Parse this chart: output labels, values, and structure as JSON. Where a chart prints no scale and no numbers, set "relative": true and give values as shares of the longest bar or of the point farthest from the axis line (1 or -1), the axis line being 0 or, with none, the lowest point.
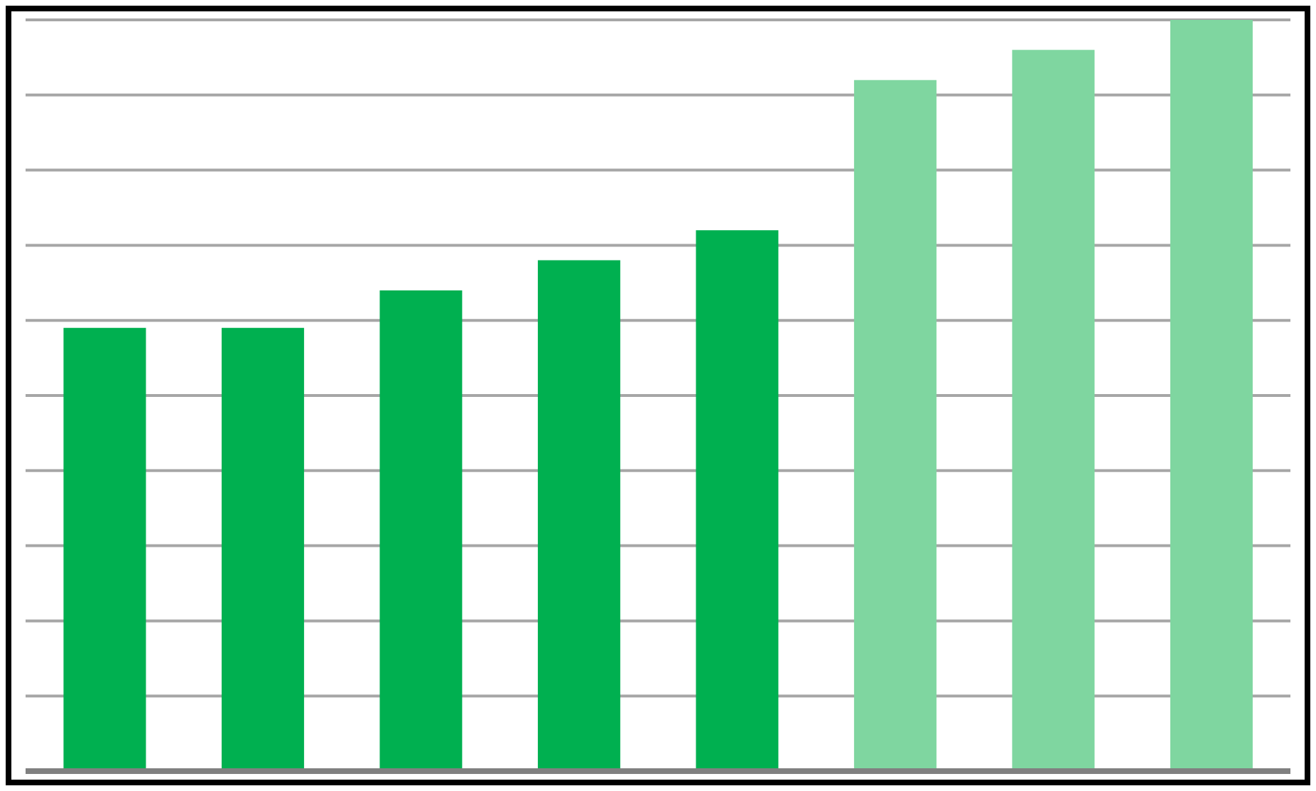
{
  "chart_data": {
    "type": "bar",
    "relative": true,
    "categories": [
      null,
      null,
      null,
      null,
      null,
      null,
      null,
      null
    ],
    "values": [
      0.59,
      0.59,
      0.64,
      0.68,
      0.72,
      0.92,
      0.96,
      1
    ],
    "colors": [
      "#00b050",
      "#00b050",
      "#00b050",
      "#00b050",
      "#00b050",
      "#7fd6a0",
      "#7fd6a0",
      "#7fd6a0"
    ],
    "grid": "y"
  }
}
